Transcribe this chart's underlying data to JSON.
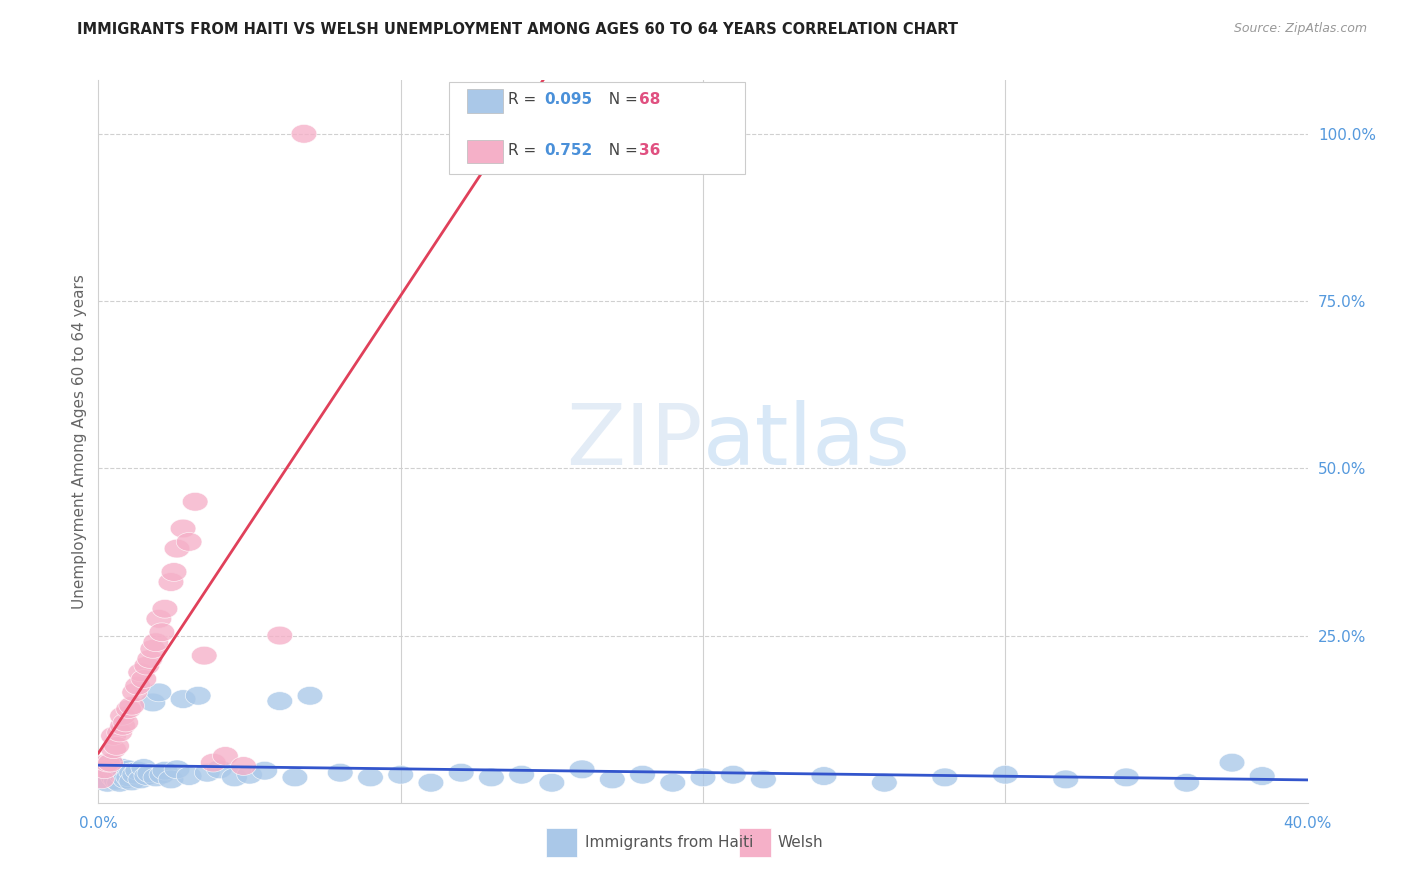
{
  "title": "IMMIGRANTS FROM HAITI VS WELSH UNEMPLOYMENT AMONG AGES 60 TO 64 YEARS CORRELATION CHART",
  "source": "Source: ZipAtlas.com",
  "ylabel": "Unemployment Among Ages 60 to 64 years",
  "background_color": "#ffffff",
  "grid_color": "#d0d0d0",
  "haiti_color": "#aac8e8",
  "welsh_color": "#f5b0c8",
  "haiti_line_color": "#3355cc",
  "welsh_line_color": "#e0405a",
  "xlim": [
    0.0,
    0.4
  ],
  "ylim": [
    0.0,
    1.08
  ],
  "yticks": [
    0.25,
    0.5,
    0.75,
    1.0
  ],
  "ytick_labels": [
    "25.0%",
    "50.0%",
    "75.0%",
    "100.0%"
  ],
  "xticks": [
    0.0,
    0.1,
    0.2,
    0.3,
    0.4
  ],
  "xtick_labels": [
    "0.0%",
    "",
    "",
    "",
    "40.0%"
  ],
  "axis_label_color": "#5599dd",
  "haiti_R": "0.095",
  "welsh_R": "0.752",
  "haiti_N": "68",
  "welsh_N": "36",
  "watermark_color": "#cce0f5",
  "haiti_x": [
    0.001,
    0.002,
    0.003,
    0.003,
    0.004,
    0.004,
    0.005,
    0.005,
    0.006,
    0.006,
    0.007,
    0.007,
    0.008,
    0.008,
    0.009,
    0.009,
    0.01,
    0.01,
    0.011,
    0.011,
    0.012,
    0.013,
    0.014,
    0.015,
    0.016,
    0.017,
    0.018,
    0.019,
    0.02,
    0.021,
    0.022,
    0.024,
    0.026,
    0.028,
    0.03,
    0.033,
    0.036,
    0.04,
    0.045,
    0.05,
    0.055,
    0.06,
    0.065,
    0.07,
    0.08,
    0.09,
    0.1,
    0.11,
    0.12,
    0.13,
    0.14,
    0.15,
    0.16,
    0.17,
    0.18,
    0.19,
    0.2,
    0.21,
    0.22,
    0.24,
    0.26,
    0.28,
    0.3,
    0.32,
    0.34,
    0.36,
    0.375,
    0.385
  ],
  "haiti_y": [
    0.04,
    0.035,
    0.05,
    0.03,
    0.045,
    0.06,
    0.038,
    0.055,
    0.042,
    0.033,
    0.048,
    0.03,
    0.052,
    0.04,
    0.044,
    0.035,
    0.05,
    0.038,
    0.046,
    0.032,
    0.042,
    0.048,
    0.035,
    0.052,
    0.04,
    0.044,
    0.15,
    0.038,
    0.165,
    0.042,
    0.048,
    0.035,
    0.05,
    0.155,
    0.04,
    0.16,
    0.045,
    0.05,
    0.038,
    0.042,
    0.048,
    0.152,
    0.038,
    0.16,
    0.045,
    0.038,
    0.042,
    0.03,
    0.045,
    0.038,
    0.042,
    0.03,
    0.05,
    0.035,
    0.042,
    0.03,
    0.038,
    0.042,
    0.035,
    0.04,
    0.03,
    0.038,
    0.042,
    0.035,
    0.038,
    0.03,
    0.06,
    0.04
  ],
  "welsh_x": [
    0.001,
    0.002,
    0.003,
    0.004,
    0.005,
    0.005,
    0.006,
    0.007,
    0.008,
    0.008,
    0.009,
    0.01,
    0.011,
    0.012,
    0.013,
    0.014,
    0.015,
    0.016,
    0.017,
    0.018,
    0.019,
    0.02,
    0.021,
    0.022,
    0.024,
    0.025,
    0.026,
    0.028,
    0.03,
    0.032,
    0.035,
    0.038,
    0.042,
    0.048,
    0.06,
    0.068
  ],
  "welsh_y": [
    0.035,
    0.05,
    0.06,
    0.06,
    0.08,
    0.1,
    0.085,
    0.105,
    0.115,
    0.13,
    0.12,
    0.14,
    0.145,
    0.165,
    0.175,
    0.195,
    0.185,
    0.205,
    0.215,
    0.23,
    0.24,
    0.275,
    0.255,
    0.29,
    0.33,
    0.345,
    0.38,
    0.41,
    0.39,
    0.45,
    0.22,
    0.06,
    0.07,
    0.055,
    0.25,
    1.0
  ]
}
